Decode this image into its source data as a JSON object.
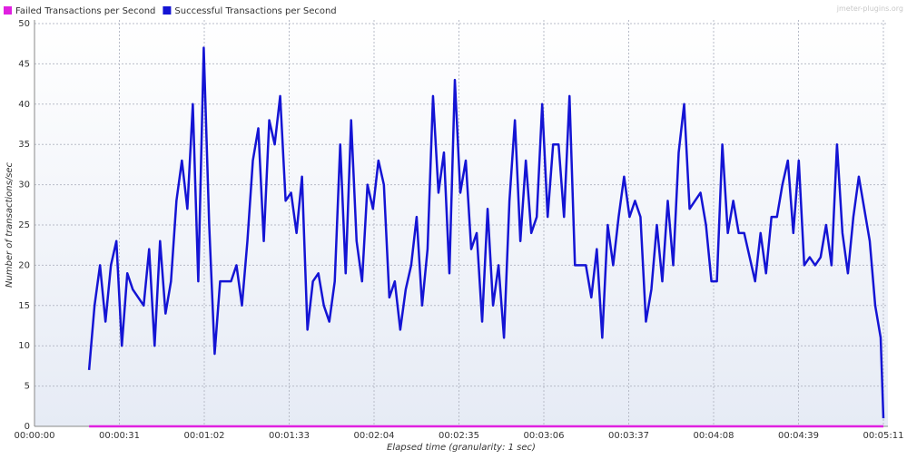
{
  "chart_data": {
    "type": "line",
    "watermark": "jmeter-plugins.org",
    "xlabel": "Elapsed time (granularity: 1 sec)",
    "ylabel": "Number of transactions/sec",
    "x": [
      20,
      22,
      24,
      26,
      28,
      30,
      32,
      34,
      36,
      38,
      40,
      42,
      44,
      46,
      48,
      50,
      52,
      54,
      56,
      58,
      60,
      62,
      64,
      66,
      68,
      70,
      72,
      74,
      76,
      78,
      80,
      82,
      84,
      86,
      88,
      90,
      92,
      94,
      96,
      98,
      100,
      102,
      104,
      106,
      108,
      110,
      112,
      114,
      116,
      118,
      120,
      122,
      124,
      126,
      128,
      130,
      132,
      134,
      136,
      138,
      140,
      142,
      144,
      146,
      148,
      150,
      152,
      154,
      156,
      158,
      160,
      162,
      164,
      166,
      168,
      170,
      172,
      174,
      176,
      178,
      180,
      182,
      184,
      186,
      188,
      190,
      192,
      194,
      196,
      198,
      200,
      202,
      204,
      206,
      208,
      210,
      212,
      214,
      216,
      218,
      220,
      222,
      224,
      226,
      228,
      230,
      232,
      234,
      236,
      238,
      240,
      242,
      244,
      246,
      248,
      250,
      252,
      254,
      256,
      258,
      260,
      262,
      264,
      266,
      268,
      270,
      272,
      274,
      276,
      278,
      280,
      282,
      284,
      286,
      288,
      290,
      292,
      294,
      296,
      298,
      300,
      302,
      304,
      306,
      308,
      310,
      311
    ],
    "series": [
      {
        "name": "Failed Transactions per Second",
        "color": "#e020e0",
        "values": [
          0,
          0,
          0,
          0,
          0,
          0,
          0,
          0,
          0,
          0,
          0,
          0,
          0,
          0,
          0,
          0,
          0,
          0,
          0,
          0,
          0,
          0,
          0,
          0,
          0,
          0,
          0,
          0,
          0,
          0,
          0,
          0,
          0,
          0,
          0,
          0,
          0,
          0,
          0,
          0,
          0,
          0,
          0,
          0,
          0,
          0,
          0,
          0,
          0,
          0,
          0,
          0,
          0,
          0,
          0,
          0,
          0,
          0,
          0,
          0,
          0,
          0,
          0,
          0,
          0,
          0,
          0,
          0,
          0,
          0,
          0,
          0,
          0,
          0,
          0,
          0,
          0,
          0,
          0,
          0,
          0,
          0,
          0,
          0,
          0,
          0,
          0,
          0,
          0,
          0,
          0,
          0,
          0,
          0,
          0,
          0,
          0,
          0,
          0,
          0,
          0,
          0,
          0,
          0,
          0,
          0,
          0,
          0,
          0,
          0,
          0,
          0,
          0,
          0,
          0,
          0,
          0,
          0,
          0,
          0,
          0,
          0,
          0,
          0,
          0,
          0,
          0,
          0,
          0,
          0,
          0,
          0,
          0,
          0,
          0,
          0,
          0,
          0,
          0,
          0,
          0,
          0,
          0,
          0,
          0,
          0,
          0
        ]
      },
      {
        "name": "Successful Transactions per Second",
        "color": "#1414d4",
        "values": [
          7,
          15,
          20,
          13,
          20,
          23,
          10,
          19,
          17,
          16,
          15,
          22,
          10,
          23,
          14,
          18,
          28,
          33,
          27,
          40,
          18,
          47,
          25,
          9,
          18,
          18,
          18,
          20,
          15,
          23,
          33,
          37,
          23,
          38,
          35,
          41,
          28,
          29,
          24,
          31,
          12,
          18,
          19,
          15,
          13,
          18,
          35,
          19,
          38,
          23,
          18,
          30,
          27,
          33,
          30,
          16,
          18,
          12,
          17,
          20,
          26,
          15,
          22,
          41,
          29,
          34,
          19,
          43,
          29,
          33,
          22,
          24,
          13,
          27,
          15,
          20,
          11,
          28,
          38,
          23,
          33,
          24,
          26,
          40,
          26,
          35,
          35,
          26,
          41,
          20,
          20,
          20,
          16,
          22,
          11,
          25,
          20,
          26,
          31,
          26,
          28,
          26,
          13,
          17,
          25,
          18,
          28,
          20,
          34,
          40,
          27,
          28,
          29,
          25,
          18,
          18,
          35,
          24,
          28,
          24,
          24,
          21,
          18,
          24,
          19,
          26,
          26,
          30,
          33,
          24,
          33,
          20,
          21,
          20,
          21,
          25,
          20,
          35,
          24,
          19,
          26,
          31,
          27,
          23,
          15,
          11,
          1
        ]
      }
    ],
    "xlim": [
      0,
      311
    ],
    "xticks": [
      {
        "value": 0,
        "label": "00:00:00"
      },
      {
        "value": 31.1,
        "label": "00:00:31"
      },
      {
        "value": 62.2,
        "label": "00:01:02"
      },
      {
        "value": 93.3,
        "label": "00:01:33"
      },
      {
        "value": 124.4,
        "label": "00:02:04"
      },
      {
        "value": 155.5,
        "label": "00:02:35"
      },
      {
        "value": 186.6,
        "label": "00:03:06"
      },
      {
        "value": 217.7,
        "label": "00:03:37"
      },
      {
        "value": 248.8,
        "label": "00:04:08"
      },
      {
        "value": 279.9,
        "label": "00:04:39"
      },
      {
        "value": 311,
        "label": "00:05:11"
      }
    ],
    "ylim": [
      0,
      50
    ],
    "yticks": [
      0,
      5,
      10,
      15,
      20,
      25,
      30,
      35,
      40,
      45,
      50
    ],
    "grid": true
  }
}
